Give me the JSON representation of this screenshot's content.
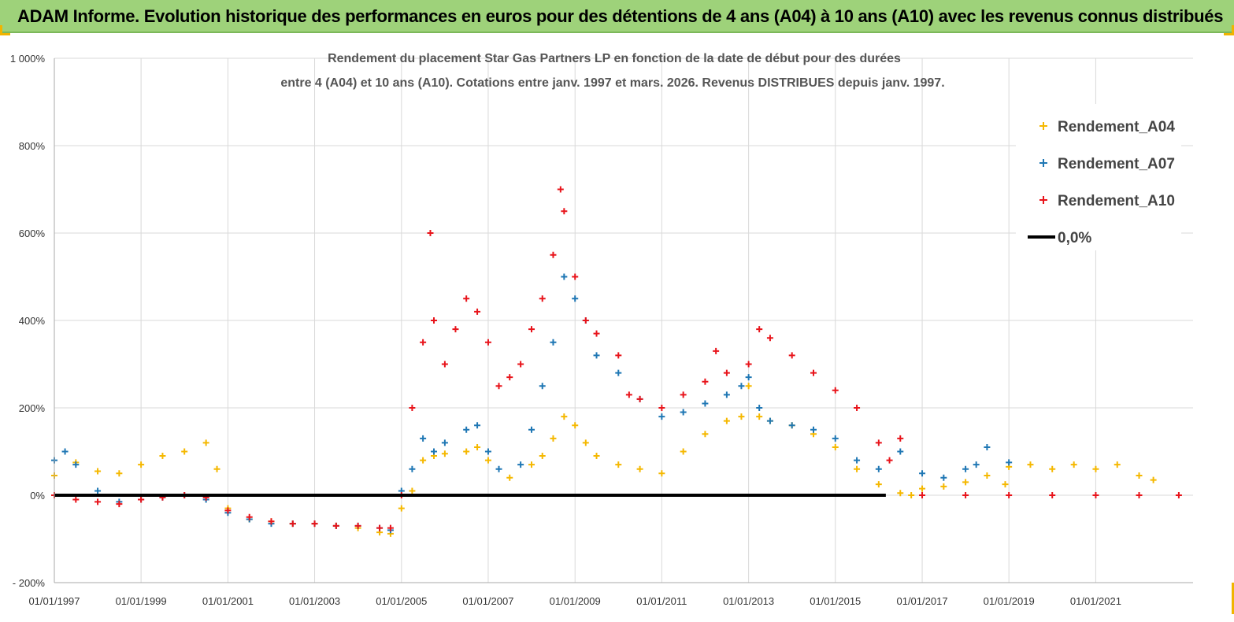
{
  "banner": {
    "title": "ADAM Informe. Evolution historique des performances en euros pour des détentions de 4 ans (A04) à 10 ans (A10) avec les revenus connus distribués"
  },
  "colors": {
    "A04": "#f5b800",
    "A07": "#1f77b4",
    "A10": "#e8141b",
    "zero": "#000000",
    "banner": "#9ed27a",
    "grid": "#d9d9d9"
  },
  "chart_data": {
    "type": "scatter",
    "title_line1": "Rendement du placement Star Gas Partners LP en fonction de la date de début pour des durées",
    "title_line2": "entre 4 (A04) et 10 ans (A10).  Cotations entre janv. 1997 et mars. 2026. Revenus DISTRIBUES depuis janv. 1997.",
    "xlabel": "",
    "ylabel": "",
    "x_range": [
      "1997-01-01",
      "2023-03-31"
    ],
    "ylim": [
      -200,
      1000
    ],
    "y_ticks": [
      -200,
      0,
      200,
      400,
      600,
      800,
      1000
    ],
    "y_tick_labels": [
      "- 200%",
      "0%",
      "200%",
      "400%",
      "600%",
      "800%",
      "1 000%"
    ],
    "x_ticks": [
      "1997-01-01",
      "1999-01-01",
      "2001-01-01",
      "2003-01-01",
      "2005-01-01",
      "2007-01-01",
      "2009-01-01",
      "2011-01-01",
      "2013-01-01",
      "2015-01-01",
      "2017-01-01",
      "2019-01-01",
      "2021-01-01"
    ],
    "x_tick_labels": [
      "01/01/1997",
      "01/01/1999",
      "01/01/2001",
      "01/01/2003",
      "01/01/2005",
      "01/01/2007",
      "01/01/2009",
      "01/01/2011",
      "01/01/2013",
      "01/01/2015",
      "01/01/2017",
      "01/01/2019",
      "01/01/2021"
    ],
    "grid": true,
    "legend_position": "top-right",
    "legend": [
      "Rendement_A04",
      "Rendement_A07",
      "Rendement_A10",
      "0,0%"
    ],
    "series": [
      {
        "name": "Rendement_A04",
        "x": [
          "1997-01-01",
          "1997-07-01",
          "1998-01-01",
          "1998-07-01",
          "1999-01-01",
          "1999-07-01",
          "2000-01-01",
          "2000-07-01",
          "2000-10-01",
          "2001-01-01",
          "2001-07-01",
          "2002-01-01",
          "2002-07-01",
          "2003-01-01",
          "2003-07-01",
          "2004-01-01",
          "2004-07-01",
          "2004-10-01",
          "2005-01-01",
          "2005-04-01",
          "2005-07-01",
          "2005-10-01",
          "2006-01-01",
          "2006-07-01",
          "2006-10-01",
          "2007-01-01",
          "2007-07-01",
          "2008-01-01",
          "2008-04-01",
          "2008-07-01",
          "2008-10-01",
          "2009-01-01",
          "2009-04-01",
          "2009-07-01",
          "2010-01-01",
          "2010-07-01",
          "2011-01-01",
          "2011-07-01",
          "2012-01-01",
          "2012-07-01",
          "2012-11-01",
          "2013-01-01",
          "2013-04-01",
          "2013-07-01",
          "2014-01-01",
          "2014-07-01",
          "2015-01-01",
          "2015-07-01",
          "2016-01-01",
          "2016-07-01",
          "2016-10-01",
          "2017-01-01",
          "2017-07-01",
          "2018-01-01",
          "2018-07-01",
          "2018-12-01",
          "2019-01-01",
          "2019-07-01",
          "2020-01-01",
          "2020-07-01",
          "2021-01-01",
          "2021-07-01",
          "2022-01-01",
          "2022-05-01"
        ],
        "values": [
          45,
          75,
          55,
          50,
          70,
          90,
          100,
          120,
          60,
          -30,
          -55,
          -60,
          -65,
          -65,
          -70,
          -75,
          -85,
          -88,
          -30,
          10,
          80,
          90,
          95,
          100,
          110,
          80,
          40,
          70,
          90,
          130,
          180,
          160,
          120,
          90,
          70,
          60,
          50,
          100,
          140,
          170,
          180,
          250,
          180,
          170,
          160,
          140,
          110,
          60,
          25,
          5,
          0,
          15,
          20,
          30,
          45,
          25,
          65,
          70,
          60,
          70,
          60,
          70,
          45,
          35
        ]
      },
      {
        "name": "Rendement_A07",
        "x": [
          "1997-01-01",
          "1997-04-01",
          "1997-07-01",
          "1998-01-01",
          "1998-07-01",
          "1999-01-01",
          "1999-07-01",
          "2000-01-01",
          "2000-07-01",
          "2001-01-01",
          "2001-07-01",
          "2002-01-01",
          "2002-07-01",
          "2003-01-01",
          "2003-07-01",
          "2004-01-01",
          "2004-07-01",
          "2004-10-01",
          "2005-01-01",
          "2005-04-01",
          "2005-07-01",
          "2005-10-01",
          "2006-01-01",
          "2006-07-01",
          "2006-10-01",
          "2007-01-01",
          "2007-04-01",
          "2007-10-01",
          "2008-01-01",
          "2008-04-01",
          "2008-07-01",
          "2008-10-01",
          "2009-01-01",
          "2009-04-01",
          "2009-07-01",
          "2010-01-01",
          "2010-07-01",
          "2011-01-01",
          "2011-07-01",
          "2012-01-01",
          "2012-07-01",
          "2012-11-01",
          "2013-01-01",
          "2013-04-01",
          "2013-07-01",
          "2014-01-01",
          "2014-07-01",
          "2015-01-01",
          "2015-07-01",
          "2016-01-01",
          "2016-07-01",
          "2017-01-01",
          "2017-07-01",
          "2018-01-01",
          "2018-04-01",
          "2018-07-01",
          "2019-01-01"
        ],
        "values": [
          80,
          100,
          70,
          10,
          -15,
          -10,
          -5,
          0,
          -10,
          -40,
          -55,
          -65,
          -65,
          -65,
          -70,
          -70,
          -75,
          -80,
          10,
          60,
          130,
          100,
          120,
          150,
          160,
          100,
          60,
          70,
          150,
          250,
          350,
          500,
          450,
          400,
          320,
          280,
          220,
          180,
          190,
          210,
          230,
          250,
          270,
          200,
          170,
          160,
          150,
          130,
          80,
          60,
          100,
          50,
          40,
          60,
          70,
          110,
          75
        ]
      },
      {
        "name": "Rendement_A10",
        "x": [
          "1997-01-01",
          "1997-07-01",
          "1998-01-01",
          "1998-07-01",
          "1999-01-01",
          "1999-07-01",
          "2000-01-01",
          "2000-07-01",
          "2001-01-01",
          "2001-07-01",
          "2002-01-01",
          "2002-07-01",
          "2003-01-01",
          "2003-07-01",
          "2004-01-01",
          "2004-07-01",
          "2004-10-01",
          "2005-01-01",
          "2005-04-01",
          "2005-07-01",
          "2005-09-01",
          "2005-10-01",
          "2006-01-01",
          "2006-04-01",
          "2006-07-01",
          "2006-10-01",
          "2007-01-01",
          "2007-04-01",
          "2007-07-01",
          "2007-10-01",
          "2008-01-01",
          "2008-04-01",
          "2008-07-01",
          "2008-09-01",
          "2008-10-01",
          "2009-01-01",
          "2009-04-01",
          "2009-07-01",
          "2010-01-01",
          "2010-04-01",
          "2010-07-01",
          "2011-01-01",
          "2011-07-01",
          "2012-01-01",
          "2012-04-01",
          "2012-07-01",
          "2013-01-01",
          "2013-04-01",
          "2013-07-01",
          "2014-01-01",
          "2014-07-01",
          "2015-01-01",
          "2015-07-01",
          "2016-01-01",
          "2016-04-01",
          "2016-07-01",
          "2017-01-01",
          "2018-01-01",
          "2019-01-01",
          "2020-01-01",
          "2021-01-01",
          "2022-01-01",
          "2022-12-01"
        ],
        "values": [
          0,
          -10,
          -15,
          -20,
          -10,
          -5,
          0,
          -5,
          -35,
          -50,
          -60,
          -65,
          -65,
          -70,
          -70,
          -75,
          -75,
          0,
          200,
          350,
          600,
          400,
          300,
          380,
          450,
          420,
          350,
          250,
          270,
          300,
          380,
          450,
          550,
          700,
          650,
          500,
          400,
          370,
          320,
          230,
          220,
          200,
          230,
          260,
          330,
          280,
          300,
          380,
          360,
          320,
          280,
          240,
          200,
          120,
          80,
          130,
          0,
          0,
          0,
          0,
          0,
          0,
          0
        ]
      }
    ]
  }
}
